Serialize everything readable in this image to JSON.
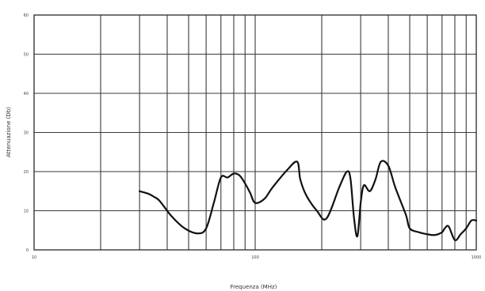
{
  "chart_data": {
    "type": "line",
    "title": "",
    "xlabel": "Frequenza (MHz)",
    "ylabel": "Attenuazione (Db)",
    "x_scale": "log",
    "xlim": [
      10,
      1000
    ],
    "ylim": [
      0,
      60
    ],
    "x_ticks": [
      {
        "value": 10,
        "label": "10"
      },
      {
        "value": 100,
        "label": "100"
      },
      {
        "value": 1000,
        "label": "1000"
      }
    ],
    "y_ticks": [
      {
        "value": 0,
        "label": "0"
      },
      {
        "value": 10,
        "label": "10"
      },
      {
        "value": 20,
        "label": "20"
      },
      {
        "value": 30,
        "label": "30"
      },
      {
        "value": 40,
        "label": "40"
      },
      {
        "value": 50,
        "label": "50"
      },
      {
        "value": 60,
        "label": "60"
      }
    ],
    "grid": true,
    "series": [
      {
        "x": [
          30,
          33,
          35,
          37,
          42,
          48,
          55,
          60,
          65,
          70,
          75,
          80,
          85,
          90,
          95,
          100,
          110,
          120,
          140,
          155,
          160,
          170,
          190,
          210,
          240,
          260,
          270,
          280,
          290,
          300,
          310,
          330,
          350,
          370,
          400,
          430,
          480,
          500,
          550,
          600,
          650,
          700,
          720,
          750,
          800,
          850,
          900,
          950,
          1000
        ],
        "y": [
          15,
          14.3,
          13.5,
          12.5,
          8.5,
          5.5,
          4.2,
          5.5,
          12,
          18.5,
          18.5,
          19.5,
          19,
          17,
          14.5,
          12,
          13,
          16,
          20.5,
          22.5,
          18,
          14,
          10,
          8,
          16,
          20,
          18,
          8,
          3.5,
          12,
          16.5,
          15,
          18,
          22.5,
          21.5,
          16,
          9,
          5.5,
          4.5,
          4,
          3.8,
          4.5,
          5.5,
          6,
          2.5,
          4,
          5.5,
          7.5,
          7.5
        ]
      }
    ]
  }
}
